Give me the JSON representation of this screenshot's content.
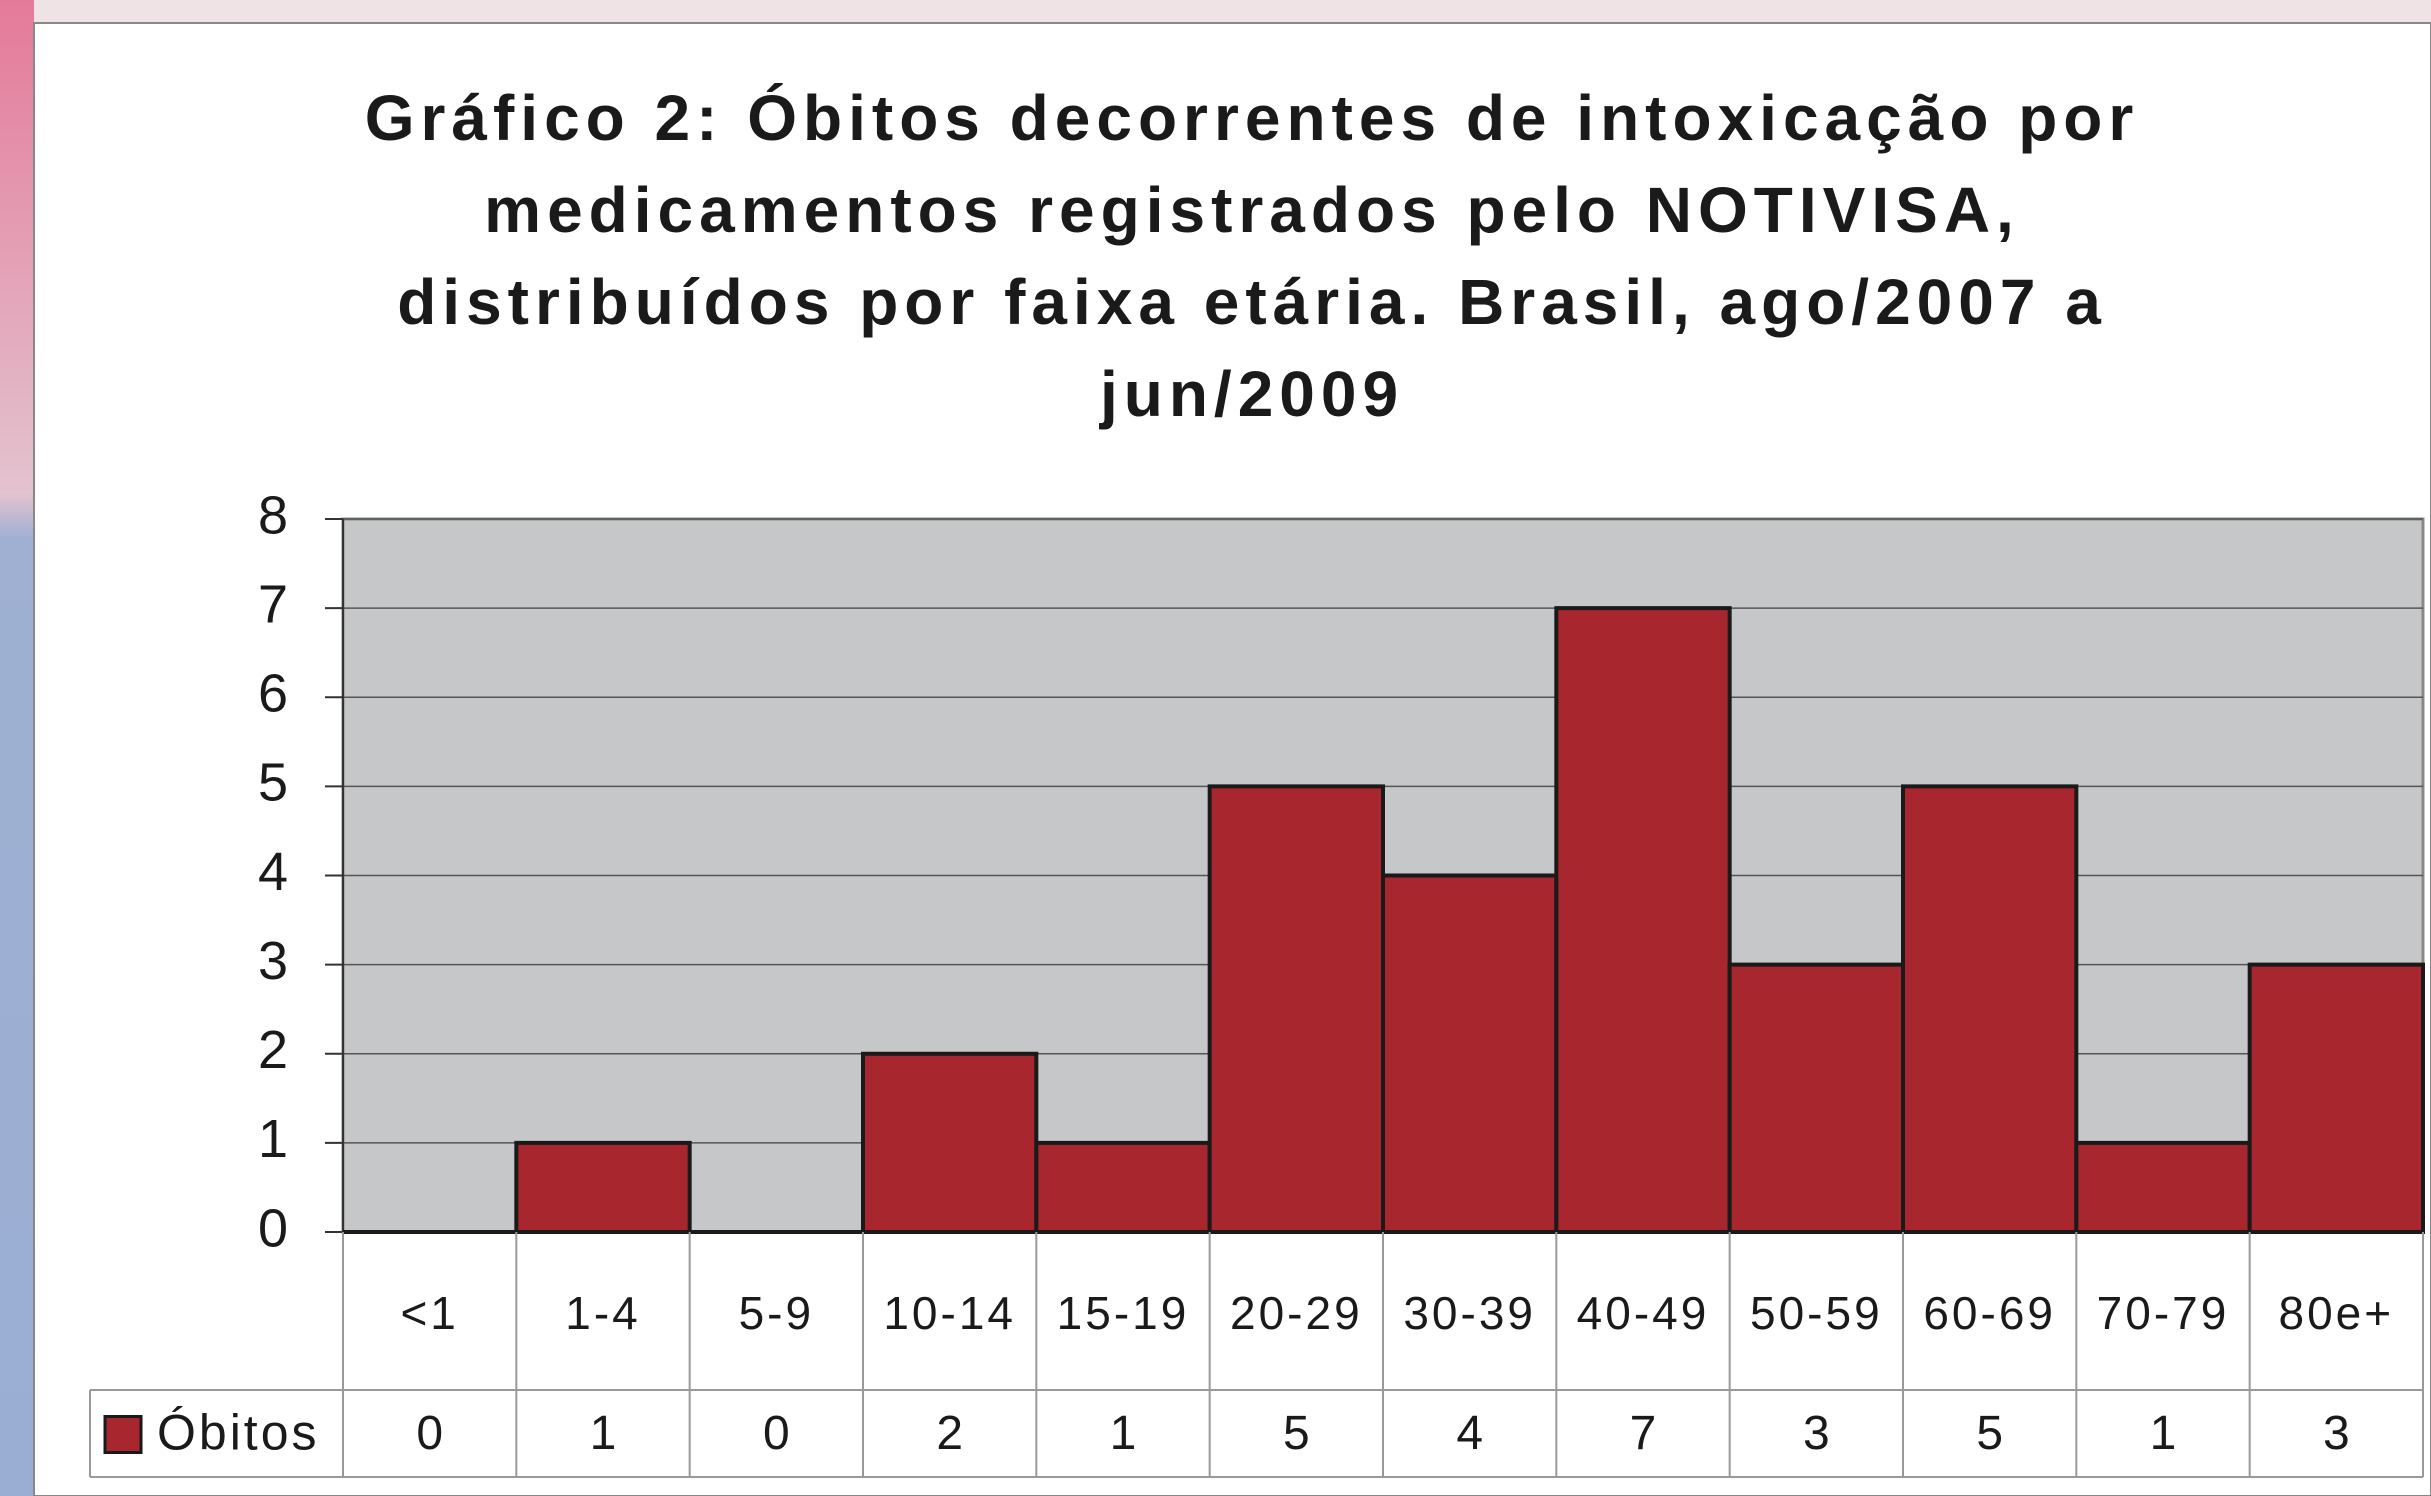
{
  "chart_data": {
    "type": "bar",
    "title": "Gráfico 2: Óbitos decorrentes de intoxicação por medicamentos registrados pelo NOTIVISA, distribuídos por faixa etária. Brasil, ago/2007 a jun/2009",
    "categories": [
      "<1",
      "1-4",
      "5-9",
      "10-14",
      "15-19",
      "20-29",
      "30-39",
      "40-49",
      "50-59",
      "60-69",
      "70-79",
      "80e+"
    ],
    "series": [
      {
        "name": "Óbitos",
        "color": "#a8272f",
        "values": [
          0,
          1,
          0,
          2,
          1,
          5,
          4,
          7,
          3,
          5,
          1,
          3
        ]
      }
    ],
    "ylim": [
      0,
      8
    ],
    "yticks": [
      0,
      1,
      2,
      3,
      4,
      5,
      6,
      7,
      8
    ],
    "grid": true
  }
}
